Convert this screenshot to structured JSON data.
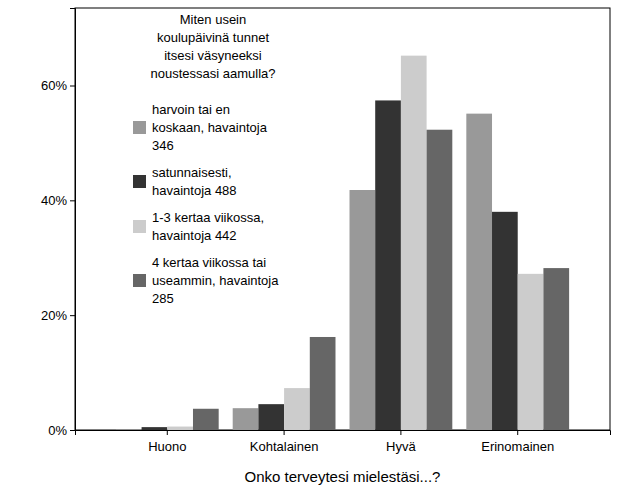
{
  "chart_data": {
    "type": "bar",
    "x_label": "Onko terveytesi mielestäsi...?",
    "legend_title": "Miten usein koulupäivinä tunnet itsesi väsyneeksi noustessasi aamulla?",
    "categories": [
      "Huono",
      "Kohtalainen",
      "Hyvä",
      "Erinomainen"
    ],
    "series": [
      {
        "name": "harvoin tai en koskaan, havaintoja 346",
        "color": "#999999",
        "values": [
          0.1,
          3.8,
          41.8,
          55.1
        ]
      },
      {
        "name": "satunnaisesti, havaintoja 488",
        "color": "#333333",
        "values": [
          0.5,
          4.5,
          57.4,
          38.0
        ]
      },
      {
        "name": "1-3 kertaa viikossa, havaintoja 442",
        "color": "#cccccc",
        "values": [
          0.6,
          7.3,
          65.2,
          27.2
        ]
      },
      {
        "name": "4 kertaa viikossa tai useammin, havaintoja 285",
        "color": "#666666",
        "values": [
          3.7,
          16.2,
          52.3,
          28.2
        ]
      }
    ],
    "ylim": [
      0,
      73.5
    ],
    "yticks": [
      {
        "value": 0,
        "label": "0%"
      },
      {
        "value": 20,
        "label": "20%"
      },
      {
        "value": 40,
        "label": "40%"
      },
      {
        "value": 60,
        "label": "60%"
      }
    ],
    "grid": false,
    "legend": "top-left"
  }
}
